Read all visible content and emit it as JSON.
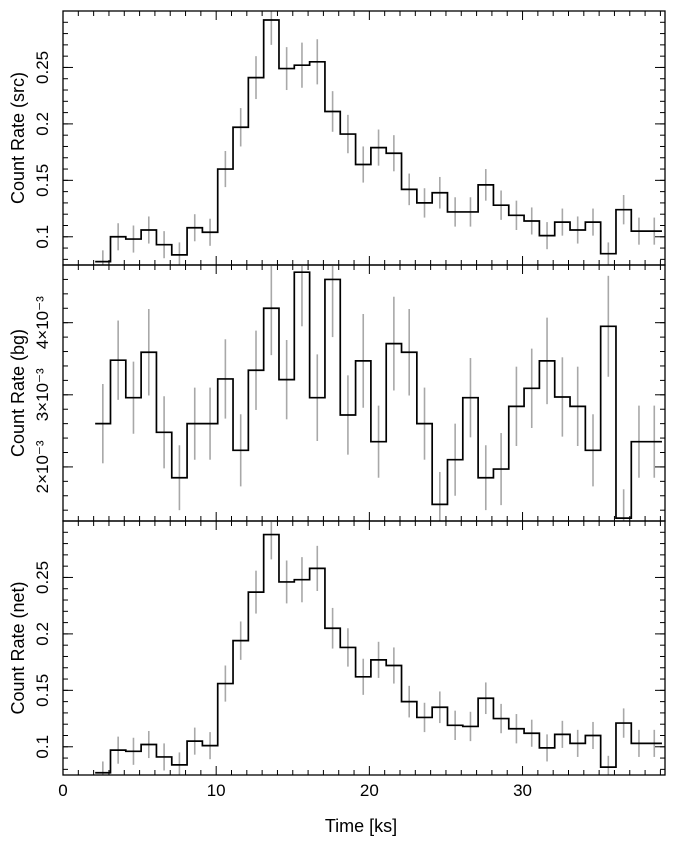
{
  "chart_data": {
    "type": "line",
    "style": "step-histogram with error bars",
    "xlabel": "Time [ks]",
    "xlim": [
      0,
      39.3
    ],
    "xticks": [
      0,
      10,
      20,
      30
    ],
    "bin_width_ks": 1.0,
    "bin_centers": [
      2.6,
      3.6,
      4.6,
      5.6,
      6.6,
      7.6,
      8.6,
      9.6,
      10.6,
      11.6,
      12.6,
      13.6,
      14.6,
      15.6,
      16.6,
      17.6,
      18.6,
      19.6,
      20.6,
      21.6,
      22.6,
      23.6,
      24.6,
      25.6,
      26.6,
      27.6,
      28.6,
      29.6,
      30.6,
      31.6,
      32.6,
      33.6,
      34.6,
      35.6,
      36.6,
      37.6,
      38.6
    ],
    "panels": [
      {
        "ylabel": "Count Rate (src)",
        "ylim": [
          0.075,
          0.3
        ],
        "yticks": [
          0.1,
          0.15,
          0.2,
          0.25
        ],
        "ytick_labels": [
          "0.1",
          "0.15",
          "0.2",
          "0.25"
        ],
        "line_color": "#000000",
        "error_color": "#a8a8a8",
        "values": [
          0.078,
          0.1,
          0.098,
          0.106,
          0.093,
          0.084,
          0.108,
          0.104,
          0.16,
          0.197,
          0.241,
          0.292,
          0.249,
          0.252,
          0.255,
          0.211,
          0.191,
          0.164,
          0.179,
          0.174,
          0.142,
          0.13,
          0.139,
          0.122,
          0.122,
          0.146,
          0.128,
          0.119,
          0.114,
          0.101,
          0.113,
          0.106,
          0.113,
          0.085,
          0.124,
          0.105,
          0.105
        ],
        "errors": [
          0.01,
          0.012,
          0.012,
          0.012,
          0.012,
          0.011,
          0.012,
          0.012,
          0.016,
          0.017,
          0.019,
          0.022,
          0.019,
          0.02,
          0.02,
          0.018,
          0.017,
          0.016,
          0.016,
          0.016,
          0.014,
          0.013,
          0.014,
          0.013,
          0.013,
          0.014,
          0.013,
          0.013,
          0.012,
          0.012,
          0.012,
          0.012,
          0.012,
          0.01,
          0.013,
          0.012,
          0.012
        ]
      },
      {
        "ylabel": "Count Rate (bg)",
        "ylim": [
          0.00125,
          0.0048
        ],
        "yticks": [
          0.002,
          0.003,
          0.004
        ],
        "ytick_labels": [
          "2×10⁻³",
          "3×10⁻³",
          "4×10⁻³"
        ],
        "line_color": "#000000",
        "error_color": "#a8a8a8",
        "values": [
          0.0026,
          0.00348,
          0.00296,
          0.00359,
          0.00248,
          0.00185,
          0.0026,
          0.0026,
          0.00322,
          0.00223,
          0.00334,
          0.0042,
          0.00321,
          0.0047,
          0.00296,
          0.0046,
          0.00272,
          0.00347,
          0.00235,
          0.00371,
          0.00359,
          0.0026,
          0.00148,
          0.0021,
          0.00296,
          0.00185,
          0.00197,
          0.00284,
          0.00309,
          0.00347,
          0.00297,
          0.00284,
          0.00223,
          0.00395,
          0.00129,
          0.00235,
          0.00235
        ],
        "errors": [
          0.00055,
          0.00055,
          0.0005,
          0.0006,
          0.0005,
          0.00045,
          0.0005,
          0.0005,
          0.00055,
          0.0005,
          0.00055,
          0.00065,
          0.00055,
          0.00075,
          0.0006,
          0.0008,
          0.00055,
          0.00065,
          0.0005,
          0.00065,
          0.0006,
          0.0005,
          0.00045,
          0.0005,
          0.00055,
          0.00045,
          0.0005,
          0.00055,
          0.00055,
          0.0006,
          0.00055,
          0.00055,
          0.0005,
          0.0007,
          0.0004,
          0.0005,
          0.0005
        ]
      },
      {
        "ylabel": "Count Rate (net)",
        "ylim": [
          0.075,
          0.3
        ],
        "yticks": [
          0.1,
          0.15,
          0.2,
          0.25
        ],
        "ytick_labels": [
          "0.1",
          "0.15",
          "0.2",
          "0.25"
        ],
        "line_color": "#000000",
        "error_color": "#a8a8a8",
        "values": [
          0.077,
          0.097,
          0.096,
          0.102,
          0.091,
          0.084,
          0.105,
          0.101,
          0.156,
          0.194,
          0.237,
          0.288,
          0.246,
          0.248,
          0.258,
          0.205,
          0.188,
          0.162,
          0.177,
          0.172,
          0.14,
          0.126,
          0.135,
          0.119,
          0.118,
          0.143,
          0.125,
          0.116,
          0.112,
          0.099,
          0.111,
          0.103,
          0.11,
          0.082,
          0.121,
          0.103,
          0.103
        ],
        "errors": [
          0.01,
          0.012,
          0.012,
          0.012,
          0.012,
          0.011,
          0.012,
          0.012,
          0.016,
          0.017,
          0.019,
          0.022,
          0.019,
          0.02,
          0.02,
          0.018,
          0.017,
          0.016,
          0.016,
          0.016,
          0.014,
          0.013,
          0.014,
          0.013,
          0.013,
          0.014,
          0.013,
          0.013,
          0.012,
          0.012,
          0.012,
          0.012,
          0.012,
          0.01,
          0.013,
          0.012,
          0.012
        ]
      }
    ]
  }
}
